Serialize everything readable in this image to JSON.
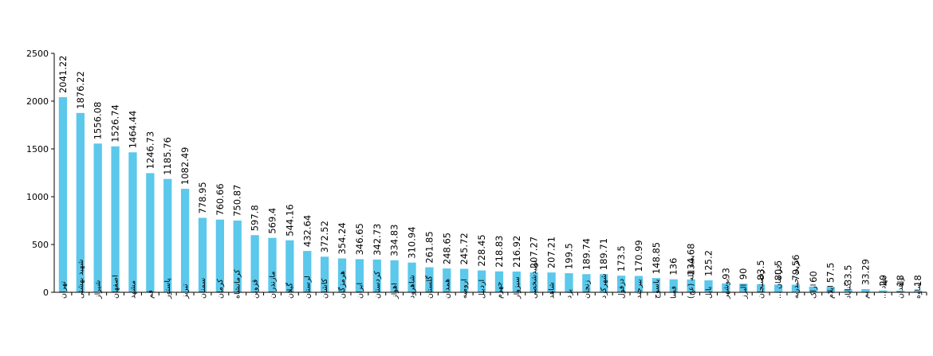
{
  "chart_data": {
    "type": "bar",
    "title": "",
    "xlabel": "",
    "ylabel": "",
    "ylim": [
      0,
      2500
    ],
    "yticks": [
      0,
      500,
      1000,
      1500,
      2000,
      2500
    ],
    "grid": false,
    "bar_color": "#5bc8ec",
    "categories": [
      "تهران",
      "شهید بهشتی",
      "شیراز",
      "اصفهان",
      "مشهد",
      "قم",
      "پاستور",
      "تبریز",
      "سمنان",
      "کرمان",
      "کرمانشاه",
      "قزوین",
      "مازندران",
      "گیلان",
      "لرستان",
      "کاشان",
      "هرمزگان",
      "ایران",
      "کردستان",
      "اهواز",
      "شاهرود",
      "گلستان",
      "همدان",
      "ارومیه",
      "اردبیل",
      "جهرم",
      "سبزوار",
      "تولیدشخصی",
      "شاهد",
      "یزد",
      "زنجان",
      "شهرکرد",
      "دزفول",
      "بیرجند",
      "یاسوج",
      "فسا",
      "بقیة الله (عج)",
      "بابل",
      "بوشهر",
      "البرز",
      "رفسنجان",
      "خراسان ...",
      "تربت حیدریه",
      "اراک",
      "ایلام",
      "گناباد",
      "بم",
      "جهاد ...",
      "زاهدان",
      "ساوه"
    ],
    "values": [
      2041.22,
      1876.22,
      1556.08,
      1526.74,
      1464.44,
      1246.73,
      1185.76,
      1082.49,
      778.95,
      760.66,
      750.87,
      597.8,
      569.4,
      544.16,
      432.64,
      372.52,
      354.24,
      346.65,
      342.73,
      334.83,
      310.94,
      261.85,
      248.65,
      245.72,
      228.45,
      218.83,
      216.92,
      207.27,
      207.21,
      199.5,
      189.74,
      189.71,
      173.5,
      170.99,
      148.85,
      136,
      134.68,
      125.2,
      93,
      90,
      83.5,
      80.5,
      79.56,
      60,
      57.5,
      33.5,
      33.29,
      20,
      18,
      18
    ],
    "value_labels": [
      "2041.22",
      "1876.22",
      "1556.08",
      "1526.74",
      "1464.44",
      "1246.73",
      "1185.76",
      "1082.49",
      "778.95",
      "760.66",
      "750.87",
      "597.8",
      "569.4",
      "544.16",
      "432.64",
      "372.52",
      "354.24",
      "346.65",
      "342.73",
      "334.83",
      "310.94",
      "261.85",
      "248.65",
      "245.72",
      "228.45",
      "218.83",
      "216.92",
      "207.27",
      "207.21",
      "199.5",
      "189.74",
      "189.71",
      "173.5",
      "170.99",
      "148.85",
      "136",
      "134.68",
      "125.2",
      "93",
      "90",
      "83.5",
      "80.5",
      "79.56",
      "60",
      "57.5",
      "33.5",
      "33.29",
      "20",
      "18",
      "18"
    ]
  }
}
